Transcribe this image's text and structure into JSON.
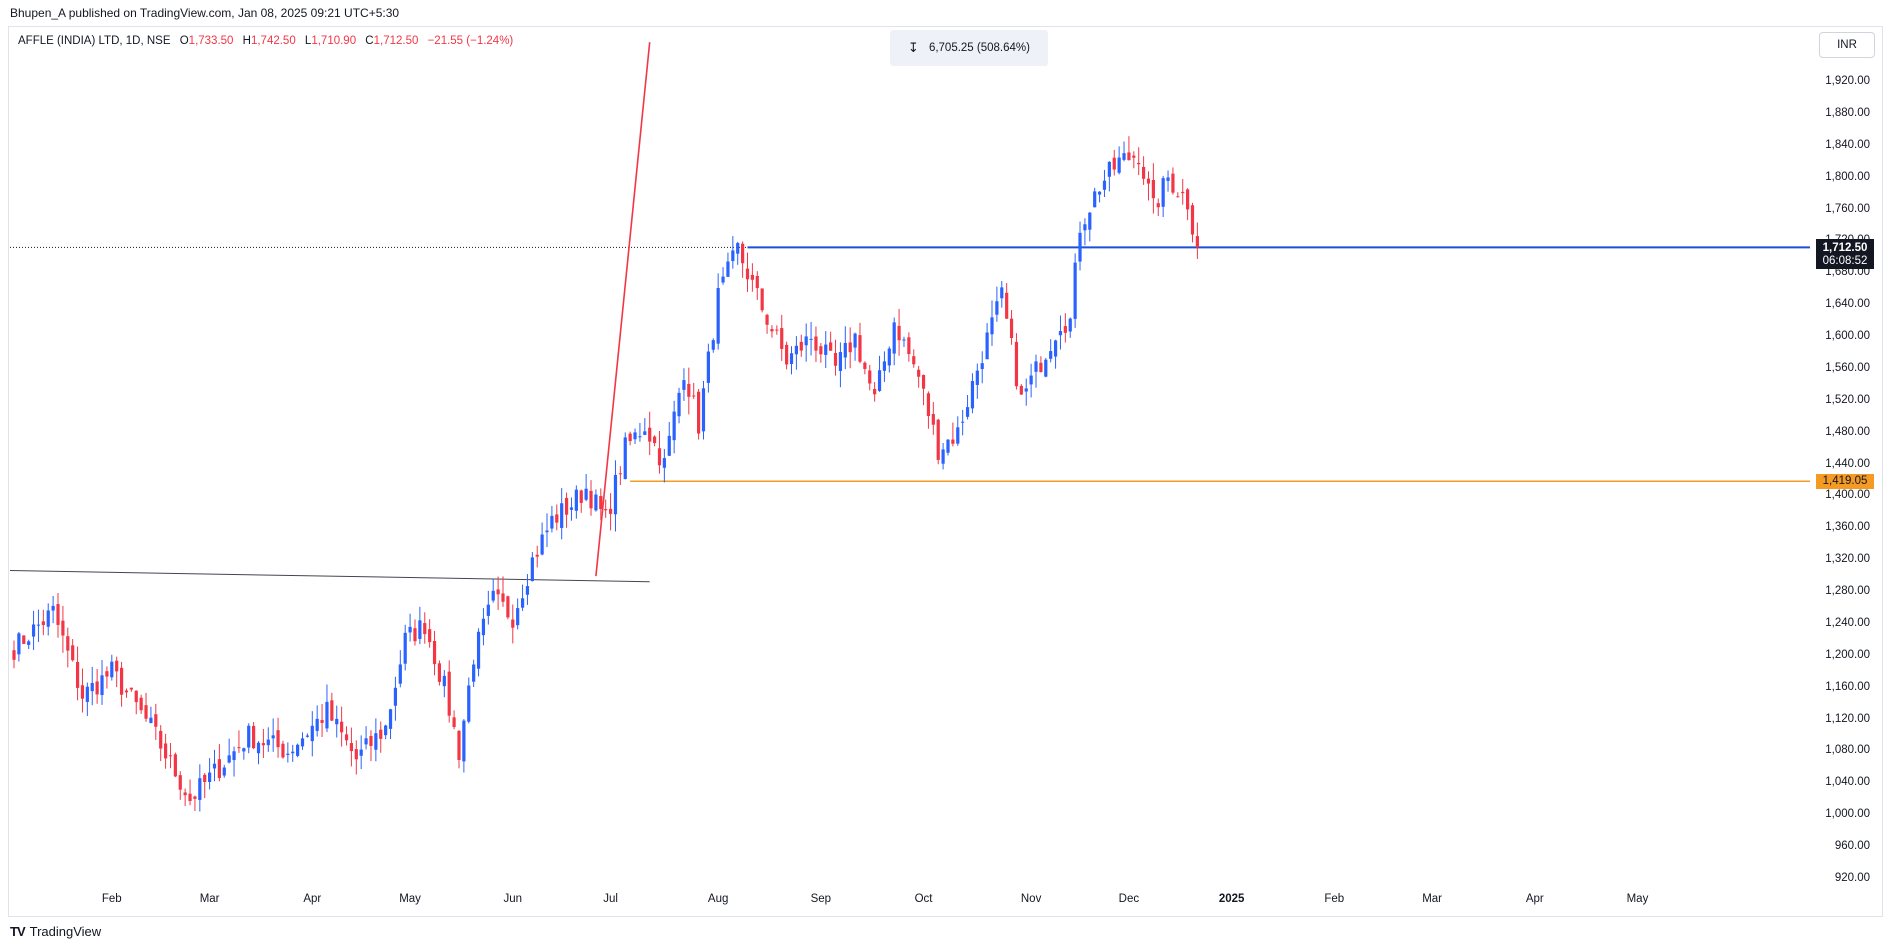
{
  "header": {
    "publisher": "Bhupen_A published on TradingView.com, Jan 08, 2025 09:21 UTC+5:30"
  },
  "legend": {
    "symbol": "AFFLE (INDIA) LTD, 1D, NSE",
    "open_label": "O",
    "open": "1,733.50",
    "high_label": "H",
    "high": "1,742.50",
    "low_label": "L",
    "low": "1,710.90",
    "close_label": "C",
    "close": "1,712.50",
    "change": "−21.55 (−1.24%)"
  },
  "measure": {
    "icon": "measure-range-icon",
    "text": "6,705.25 (508.64%)"
  },
  "currency": "INR",
  "price_tags": {
    "last_price": "1,712.50",
    "countdown": "06:08:52",
    "support": "1,419.05"
  },
  "footer": {
    "logo_mark": "TV",
    "brand": "TradingView"
  },
  "colors": {
    "up": "#2962ff",
    "down": "#f23645",
    "resistance_line": "#1e4fd8",
    "support_line": "#f59a23",
    "trend_line": "#f23645",
    "neckline": "#434651"
  },
  "chart_data": {
    "type": "candlestick",
    "title": "AFFLE (INDIA) LTD, 1D, NSE",
    "ylim": [
      900,
      1970
    ],
    "y_ticks": [
      920,
      960,
      1000,
      1040,
      1080,
      1120,
      1160,
      1200,
      1240,
      1280,
      1320,
      1360,
      1400,
      1440,
      1480,
      1520,
      1560,
      1600,
      1640,
      1680,
      1720,
      1760,
      1800,
      1840,
      1880,
      1920
    ],
    "y_tick_labels": [
      "920.00",
      "960.00",
      "1,000.00",
      "1,040.00",
      "1,080.00",
      "1,120.00",
      "1,160.00",
      "1,200.00",
      "1,240.00",
      "1,280.00",
      "1,320.00",
      "1,360.00",
      "1,400.00",
      "1,440.00",
      "1,480.00",
      "1,520.00",
      "1,560.00",
      "1,600.00",
      "1,640.00",
      "1,680.00",
      "1,720.00",
      "1,760.00",
      "1,800.00",
      "1,840.00",
      "1,880.00",
      "1,920.00"
    ],
    "x_labels": [
      "Feb",
      "Mar",
      "Apr",
      "May",
      "Jun",
      "Jul",
      "Aug",
      "Sep",
      "Oct",
      "Nov",
      "Dec",
      "2025",
      "Feb",
      "Mar",
      "Apr",
      "May"
    ],
    "x_label_bar_index": [
      20,
      40,
      61,
      81,
      102,
      122,
      144,
      165,
      186,
      208,
      228,
      249,
      270,
      290,
      311,
      332
    ],
    "key_points": [
      {
        "bar": 0,
        "close": 1210
      },
      {
        "bar": 8,
        "close": 1255
      },
      {
        "bar": 14,
        "close": 1150
      },
      {
        "bar": 20,
        "close": 1180
      },
      {
        "bar": 28,
        "close": 1110
      },
      {
        "bar": 36,
        "close": 1020
      },
      {
        "bar": 42,
        "close": 1060
      },
      {
        "bar": 48,
        "close": 1100
      },
      {
        "bar": 56,
        "close": 1080
      },
      {
        "bar": 64,
        "close": 1130
      },
      {
        "bar": 70,
        "close": 1070
      },
      {
        "bar": 76,
        "close": 1110
      },
      {
        "bar": 80,
        "close": 1220
      },
      {
        "bar": 84,
        "close": 1240
      },
      {
        "bar": 88,
        "close": 1160
      },
      {
        "bar": 91,
        "close": 1080
      },
      {
        "bar": 94,
        "close": 1200
      },
      {
        "bar": 98,
        "close": 1270
      },
      {
        "bar": 102,
        "close": 1250
      },
      {
        "bar": 106,
        "close": 1320
      },
      {
        "bar": 110,
        "close": 1370
      },
      {
        "bar": 114,
        "close": 1390
      },
      {
        "bar": 117,
        "close": 1410
      },
      {
        "bar": 121,
        "close": 1370
      },
      {
        "bar": 125,
        "close": 1460
      },
      {
        "bar": 129,
        "close": 1490
      },
      {
        "bar": 133,
        "close": 1440
      },
      {
        "bar": 137,
        "close": 1560
      },
      {
        "bar": 140,
        "close": 1490
      },
      {
        "bar": 144,
        "close": 1650
      },
      {
        "bar": 148,
        "close": 1710
      },
      {
        "bar": 152,
        "close": 1650
      },
      {
        "bar": 158,
        "close": 1570
      },
      {
        "bar": 163,
        "close": 1600
      },
      {
        "bar": 168,
        "close": 1560
      },
      {
        "bar": 172,
        "close": 1600
      },
      {
        "bar": 176,
        "close": 1520
      },
      {
        "bar": 180,
        "close": 1620
      },
      {
        "bar": 185,
        "close": 1550
      },
      {
        "bar": 189,
        "close": 1460
      },
      {
        "bar": 193,
        "close": 1480
      },
      {
        "bar": 198,
        "close": 1580
      },
      {
        "bar": 202,
        "close": 1650
      },
      {
        "bar": 206,
        "close": 1520
      },
      {
        "bar": 210,
        "close": 1570
      },
      {
        "bar": 214,
        "close": 1620
      },
      {
        "bar": 216,
        "close": 1620
      },
      {
        "bar": 218,
        "close": 1740
      },
      {
        "bar": 222,
        "close": 1790
      },
      {
        "bar": 226,
        "close": 1820
      },
      {
        "bar": 230,
        "close": 1830
      },
      {
        "bar": 233,
        "close": 1760
      },
      {
        "bar": 236,
        "close": 1800
      },
      {
        "bar": 240,
        "close": 1770
      },
      {
        "bar": 242,
        "close": 1712.5
      }
    ],
    "last_price": 1712.5,
    "support_level": 1419.05,
    "resistance_level": 1712.5,
    "trendline": {
      "from": {
        "bar": 119,
        "price": 1300
      },
      "to": {
        "bar": 130,
        "price": 1970
      }
    },
    "neckline": {
      "from": {
        "bar": 0,
        "price": 1307
      },
      "to": {
        "bar": 130,
        "price": 1293
      }
    }
  }
}
